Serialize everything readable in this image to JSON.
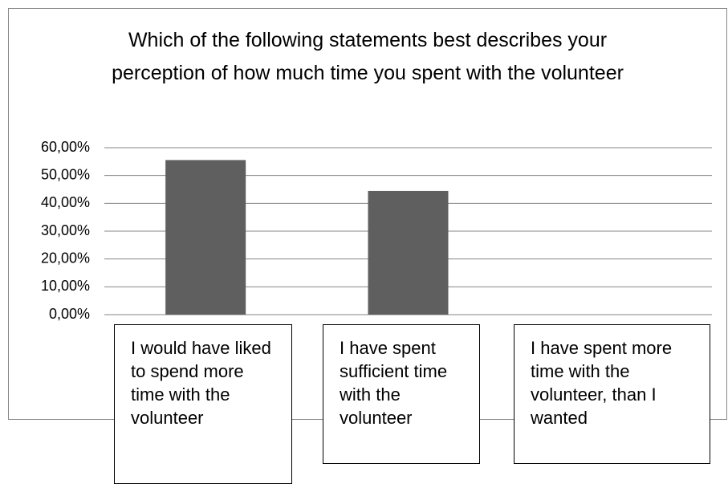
{
  "chart_data": {
    "type": "bar",
    "title": "Which of the following statements best describes your perception of how much time you spent with the volunteer",
    "categories": [
      "I would have liked to spend more time with the volunteer",
      "I have spent sufficient time with the volunteer",
      "I have spent more time with the volunteer, than I wanted"
    ],
    "values": [
      55.56,
      44.44,
      0
    ],
    "color": "#5f5f5f",
    "ylim": [
      0,
      60
    ],
    "yticks": [
      {
        "value": 0,
        "label": "0,00%"
      },
      {
        "value": 10,
        "label": "10,00%"
      },
      {
        "value": 20,
        "label": "20,00%"
      },
      {
        "value": 30,
        "label": "30,00%"
      },
      {
        "value": 40,
        "label": "40,00%"
      },
      {
        "value": 50,
        "label": "50,00%"
      },
      {
        "value": 60,
        "label": "60,00%"
      }
    ],
    "grid": true
  }
}
